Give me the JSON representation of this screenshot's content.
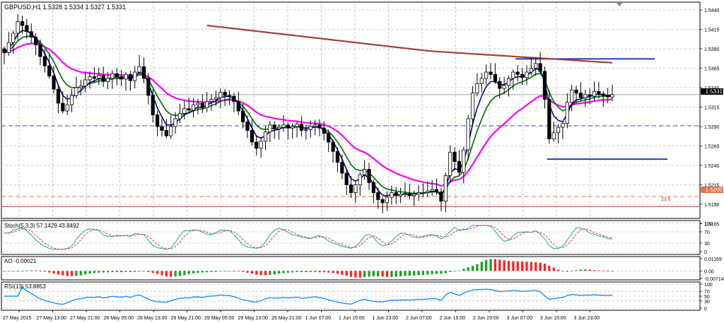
{
  "chart_data": [
    {
      "type": "candlestick",
      "title": "GBPUSD,H1  1.5328 1.5334 1.5327 1.5331",
      "ylim": [
        1.5165,
        1.545
      ],
      "yticks": [
        "1.5440",
        "1.5415",
        "1.5390",
        "1.5365",
        "1.5340",
        "1.5315",
        "1.5290",
        "1.5265",
        "1.5240",
        "1.5215",
        "1.5190",
        "1.5165"
      ],
      "xticks": [
        "27 May 2015",
        "27 May 13:00",
        "27 May 21:00",
        "28 May 05:00",
        "28 May 13:00",
        "28 May 21:00",
        "29 May 05:00",
        "29 May 13:00",
        "29 May 21:00",
        "1 Jun 07:00",
        "1 Jun 15:00",
        "1 Jun 23:00",
        "2 Jun 07:00",
        "2 Jun 15:00",
        "2 Jun 23:00",
        "3 Jun 07:00",
        "3 Jun 15:00",
        "3 Jun 23:00"
      ],
      "current_price": "1.5331",
      "level_label": "1.5200",
      "level_label_2": "23.6",
      "levels": [
        {
          "value": 1.5331,
          "style": "solid",
          "color": "#a0a0a0"
        },
        {
          "value": 1.5291,
          "style": "dashed",
          "color": "#5a5aa8"
        },
        {
          "value": 1.52,
          "style": "dashed",
          "color": "#e8704a"
        },
        {
          "value": 1.5187,
          "style": "solid",
          "color": "#b04030"
        },
        {
          "value": 1.5377,
          "style": "solid",
          "color": "#1a2fb8",
          "from_x": 729,
          "to_x": 926
        },
        {
          "value": 1.5248,
          "style": "solid",
          "color": "#1a2fb8",
          "from_x": 774,
          "to_x": 944
        }
      ],
      "closes": [
        1.5385,
        1.5398,
        1.541,
        1.5425,
        1.542,
        1.5412,
        1.5405,
        1.5395,
        1.538,
        1.5368,
        1.5355,
        1.5338,
        1.532,
        1.531,
        1.5318,
        1.533,
        1.534,
        1.5342,
        1.535,
        1.5354,
        1.5352,
        1.5356,
        1.5348,
        1.5352,
        1.5358,
        1.5354,
        1.5351,
        1.5357,
        1.5349,
        1.536,
        1.5367,
        1.5352,
        1.533,
        1.5305,
        1.529,
        1.5285,
        1.5278,
        1.529,
        1.53,
        1.5307,
        1.5313,
        1.5311,
        1.5318,
        1.532,
        1.5314,
        1.5322,
        1.5325,
        1.5327,
        1.5334,
        1.533,
        1.5329,
        1.5322,
        1.531,
        1.5296,
        1.5285,
        1.527,
        1.5262,
        1.5271,
        1.5283,
        1.5292,
        1.5287,
        1.5289,
        1.5292,
        1.5288,
        1.529,
        1.5293,
        1.5285,
        1.5286,
        1.529,
        1.5292,
        1.5288,
        1.5281,
        1.527,
        1.5258,
        1.5244,
        1.523,
        1.5215,
        1.5205,
        1.5215,
        1.5228,
        1.5235,
        1.5218,
        1.5205,
        1.5196,
        1.5192,
        1.5199,
        1.5205,
        1.5201,
        1.5203,
        1.5204,
        1.5201,
        1.5203,
        1.5205,
        1.5205,
        1.5207,
        1.5209,
        1.5206,
        1.5194,
        1.5227,
        1.5257,
        1.5245,
        1.5231,
        1.526,
        1.53,
        1.5333,
        1.5345,
        1.5352,
        1.536,
        1.5357,
        1.5348,
        1.5339,
        1.5343,
        1.5352,
        1.536,
        1.5357,
        1.5353,
        1.536,
        1.5365,
        1.5371,
        1.5361,
        1.5325,
        1.5274,
        1.5282,
        1.5289,
        1.5294,
        1.5321,
        1.5337,
        1.5333,
        1.5327,
        1.5331,
        1.5329,
        1.5335,
        1.5332,
        1.533,
        1.5328,
        1.5331
      ]
    },
    {
      "type": "line",
      "title": "Stoch(5,3,3) 57.1429 43.8492",
      "yticks": [
        "100",
        "70",
        "30",
        "0"
      ],
      "ylim": [
        0,
        100
      ]
    },
    {
      "type": "bar",
      "title": "AO -0.00021",
      "yticks": [
        "0.01169",
        "0.00",
        "-0.00714"
      ],
      "ylim": [
        -0.00714,
        0.01169
      ]
    },
    {
      "type": "line",
      "title": "RSI(13) 53.8853",
      "yticks": [
        "100",
        "70",
        "50",
        "30",
        "0"
      ],
      "ylim": [
        0,
        100
      ]
    }
  ]
}
